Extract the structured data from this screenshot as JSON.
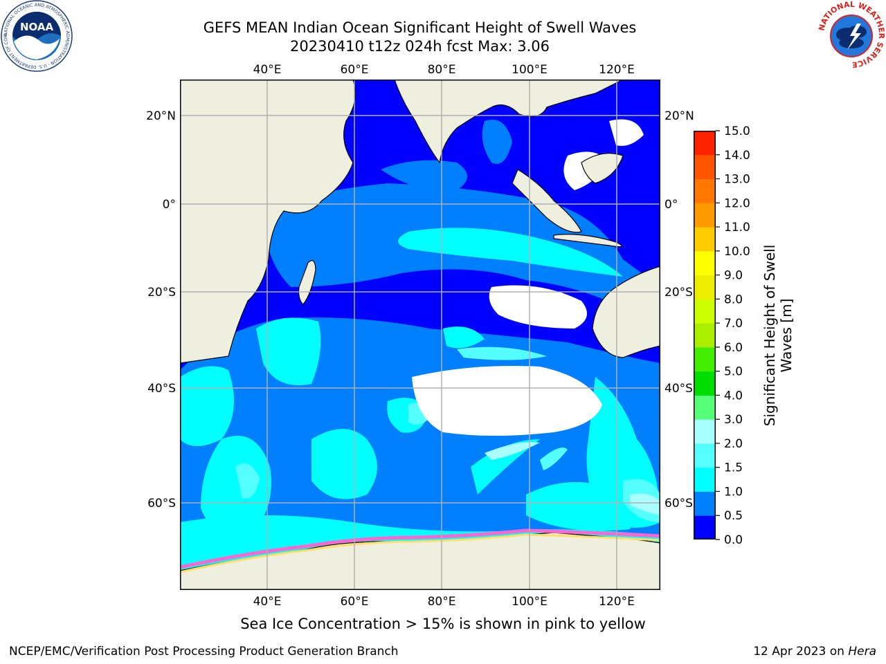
{
  "header": {
    "title_line1": "GEFS MEAN Indian Ocean Significant Height of Swell Waves",
    "title_line2": "20230410 t12z 024h fcst   Max: 3.06"
  },
  "logos": {
    "noaa_center": "NOAA",
    "noaa_ring": "NATIONAL OCEANIC AND ATMOSPHERIC ADMINISTRATION · U.S. DEPARTMENT OF COMMERCE",
    "nws_ring": "NATIONAL WEATHER SERVICE"
  },
  "map": {
    "lon_labels": [
      "40°E",
      "60°E",
      "80°E",
      "100°E",
      "120°E"
    ],
    "lat_labels": [
      "20°N",
      "0°",
      "20°S",
      "40°S",
      "60°S"
    ],
    "lon_range": [
      20,
      130
    ],
    "lat_range": [
      -73,
      27
    ],
    "grid": true,
    "colors": {
      "land": "#efefdf",
      "land_border": "#000000",
      "grid": "#b0b0b0",
      "ice_pink": "#ff66cc",
      "ice_yellow": "#ffdd66"
    }
  },
  "chart_data": {
    "type": "heatmap",
    "title": "GEFS MEAN Indian Ocean Significant Height of Swell Waves",
    "subtitle": "20230410 t12z 024h fcst   Max: 3.06",
    "variable_max": 3.06,
    "colorbar": {
      "label": "Significant Height of Swell Waves [m]",
      "ticks": [
        "0.0",
        "0.5",
        "1.0",
        "1.5",
        "2.0",
        "3.0",
        "4.0",
        "5.0",
        "6.0",
        "7.0",
        "8.0",
        "9.0",
        "10.0",
        "11.0",
        "12.0",
        "13.0",
        "14.0",
        "15.0"
      ],
      "colors": [
        "#0000ff",
        "#0080ff",
        "#00ffff",
        "#55ffff",
        "#aaffff",
        "#55ff77",
        "#00dd00",
        "#44ee00",
        "#aaee00",
        "#ccff00",
        "#eeee00",
        "#ffff00",
        "#ffcc00",
        "#ff9900",
        "#ff7700",
        "#ff5500",
        "#ff2200"
      ]
    }
  },
  "footer": {
    "note": "Sea Ice Concentration > 15% is shown in pink to yellow",
    "credit": "NCEP/EMC/Verification Post Processing Product Generation Branch",
    "date": "12 Apr 2023 on",
    "host": "Hera"
  }
}
